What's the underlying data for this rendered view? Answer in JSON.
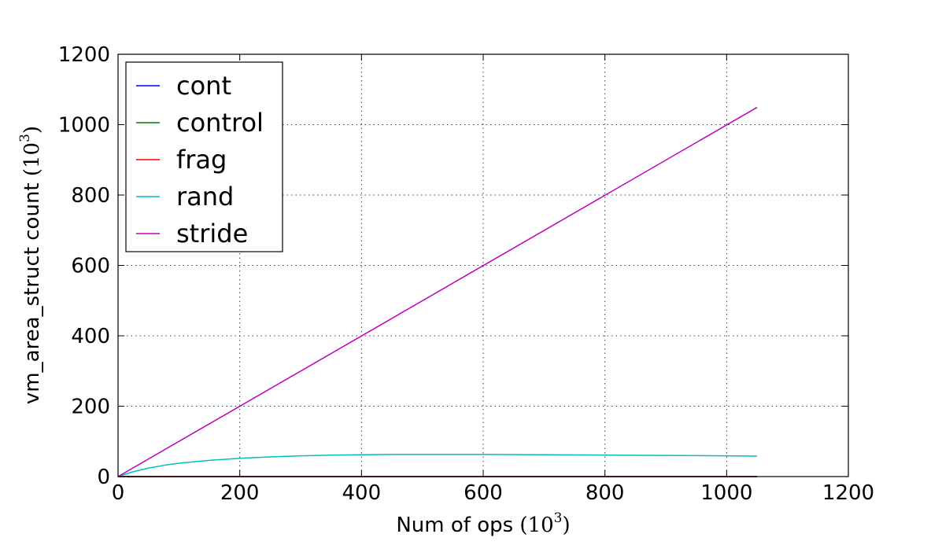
{
  "chart_data": {
    "type": "line",
    "title": "",
    "xlabel_prefix": "Num of ops ",
    "xlabel_unit_base": "(10",
    "xlabel_unit_exp": "3",
    "xlabel_unit_close": ")",
    "ylabel_prefix": "vm_area_struct count ",
    "ylabel_unit_base": "(10",
    "ylabel_unit_exp": "3",
    "ylabel_unit_close": ")",
    "xlim": [
      0,
      1200
    ],
    "ylim": [
      0,
      1200
    ],
    "xticks": [
      0,
      200,
      400,
      600,
      800,
      1000,
      1200
    ],
    "yticks": [
      0,
      200,
      400,
      600,
      800,
      1000,
      1200
    ],
    "grid": true,
    "legend_position": "upper-left",
    "series": [
      {
        "name": "cont",
        "color": "#0000ff",
        "x": [
          0,
          1050
        ],
        "y": [
          0,
          0
        ]
      },
      {
        "name": "control",
        "color": "#008000",
        "x": [
          0,
          1050
        ],
        "y": [
          0,
          0
        ]
      },
      {
        "name": "frag",
        "color": "#ff0000",
        "x": [
          0,
          1050
        ],
        "y": [
          0,
          0
        ]
      },
      {
        "name": "rand",
        "color": "#00bfbf",
        "x": [
          0,
          25,
          50,
          75,
          100,
          150,
          200,
          250,
          300,
          350,
          400,
          450,
          500,
          600,
          700,
          800,
          900,
          1000,
          1050
        ],
        "y": [
          0,
          14,
          24,
          32,
          38,
          46,
          52,
          56,
          59,
          61,
          62,
          63,
          63,
          63,
          62,
          61,
          60,
          59,
          58
        ]
      },
      {
        "name": "stride",
        "color": "#bf00bf",
        "x": [
          0,
          1050
        ],
        "y": [
          0,
          1049
        ]
      }
    ]
  }
}
